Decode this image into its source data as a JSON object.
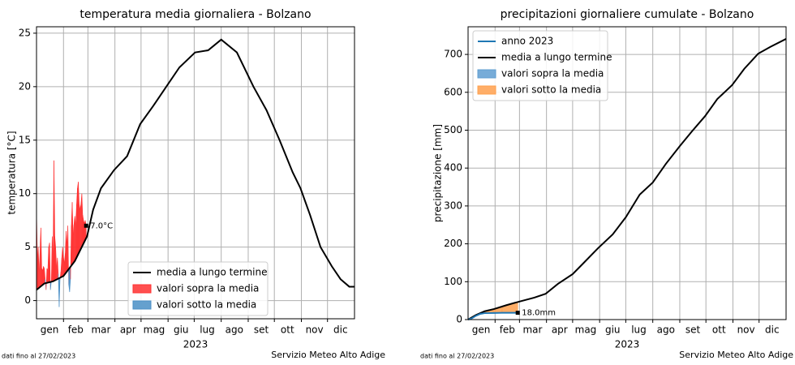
{
  "chart_data": [
    {
      "type": "line",
      "title": "temperatura media giornaliera - Bolzano",
      "ylabel": "temperatura [°C]",
      "xlabel": "2023",
      "xlim": [
        1,
        366
      ],
      "ylim": [
        -1.7,
        25.6
      ],
      "yticks": [
        0,
        5,
        10,
        15,
        20,
        25
      ],
      "xticks": [
        {
          "value": 16,
          "label": "gen"
        },
        {
          "value": 46,
          "label": "feb"
        },
        {
          "value": 75,
          "label": "mar"
        },
        {
          "value": 106,
          "label": "apr"
        },
        {
          "value": 136,
          "label": "mag"
        },
        {
          "value": 167,
          "label": "giu"
        },
        {
          "value": 197,
          "label": "lug"
        },
        {
          "value": 228,
          "label": "ago"
        },
        {
          "value": 259,
          "label": "set"
        },
        {
          "value": 289,
          "label": "ott"
        },
        {
          "value": 320,
          "label": "nov"
        },
        {
          "value": 350,
          "label": "dic"
        }
      ],
      "xgrid": [
        32,
        60,
        91,
        121,
        152,
        182,
        213,
        244,
        274,
        305,
        335
      ],
      "grid": true,
      "legend": "lower right",
      "series": [
        {
          "name": "media a lungo termine",
          "color": "#000000",
          "x": [
            1,
            10,
            20,
            32,
            45,
            59,
            66,
            75,
            90,
            105,
            120,
            135,
            150,
            165,
            183,
            198,
            213,
            231,
            250,
            265,
            280,
            295,
            304,
            315,
            327,
            340,
            350,
            360,
            366
          ],
          "values": [
            1.0,
            1.6,
            1.8,
            2.3,
            3.7,
            6.0,
            8.5,
            10.5,
            12.2,
            13.5,
            16.5,
            18.2,
            20.0,
            21.8,
            23.2,
            23.4,
            24.4,
            23.2,
            20.0,
            17.8,
            15.0,
            12.0,
            10.5,
            8.0,
            5.0,
            3.2,
            2.0,
            1.3,
            1.3
          ]
        },
        {
          "x": [
            1,
            2,
            3,
            4,
            5,
            6,
            7,
            8,
            9,
            10,
            11,
            12,
            13,
            14,
            15,
            16,
            17,
            18,
            19,
            20,
            21,
            22,
            23,
            24,
            25,
            26,
            27,
            28,
            29,
            30,
            31,
            32,
            33,
            34,
            35,
            36,
            37,
            38,
            39,
            40,
            41,
            42,
            43,
            44,
            45,
            46,
            47,
            48,
            49,
            50,
            51,
            52,
            53,
            54,
            55,
            56,
            57,
            58
          ],
          "values": [
            8.5,
            4,
            5,
            2.5,
            4.5,
            6.8,
            3,
            2.8,
            3.2,
            3,
            2,
            1.0,
            3,
            2.8,
            5,
            5.4,
            1.0,
            1.8,
            6,
            4,
            13.1,
            6,
            5,
            3,
            4,
            2.5,
            -0.6,
            2,
            2.7,
            4,
            5,
            4,
            3.5,
            4.4,
            6.5,
            5,
            7,
            1.5,
            0.8,
            2.0,
            7,
            9.2,
            6,
            7.1,
            7.9,
            7,
            9,
            10.5,
            11.1,
            9,
            8.5,
            9,
            10,
            8,
            7.5,
            7.2,
            7.5,
            7.0
          ]
        }
      ],
      "above": {
        "name": "valori sopra la media",
        "color": "#ff3030"
      },
      "below": {
        "name": "valori sotto la media",
        "color": "#4a8fc6"
      },
      "annotation": "7.0°C",
      "footer_left": "dati fino al 27/02/2023",
      "footer_right": "Servizio Meteo Alto Adige"
    },
    {
      "type": "line",
      "title": "precipitazioni giornaliere cumulate - Bolzano",
      "ylabel": "precipitazione [mm]",
      "xlabel": "2023",
      "xlim": [
        1,
        366
      ],
      "ylim": [
        0,
        773
      ],
      "yticks": [
        0,
        100,
        200,
        300,
        400,
        500,
        600,
        700
      ],
      "xticks": [
        {
          "value": 16,
          "label": "gen"
        },
        {
          "value": 46,
          "label": "feb"
        },
        {
          "value": 75,
          "label": "mar"
        },
        {
          "value": 106,
          "label": "apr"
        },
        {
          "value": 136,
          "label": "mag"
        },
        {
          "value": 167,
          "label": "giu"
        },
        {
          "value": 197,
          "label": "lug"
        },
        {
          "value": 228,
          "label": "ago"
        },
        {
          "value": 259,
          "label": "set"
        },
        {
          "value": 289,
          "label": "ott"
        },
        {
          "value": 320,
          "label": "nov"
        },
        {
          "value": 350,
          "label": "dic"
        }
      ],
      "xgrid": [
        32,
        60,
        91,
        121,
        152,
        182,
        213,
        244,
        274,
        305,
        335
      ],
      "grid": true,
      "legend": "upper left",
      "series": [
        {
          "name": "media a lungo termine",
          "color": "#000000",
          "x": [
            1,
            10,
            20,
            31,
            45,
            59,
            77,
            90,
            104,
            121,
            133,
            150,
            167,
            182,
            198,
            213,
            228,
            244,
            258,
            273,
            287,
            304,
            318,
            334,
            348,
            366
          ],
          "values": [
            0,
            12,
            22,
            28,
            38,
            47,
            58,
            68,
            94,
            120,
            148,
            188,
            225,
            270,
            330,
            362,
            411,
            458,
            497,
            537,
            582,
            619,
            662,
            702,
            720,
            741
          ]
        },
        {
          "name": "anno 2023",
          "color": "#1f77b4",
          "x": [
            1,
            5,
            10,
            15,
            20,
            30,
            40,
            58
          ],
          "values": [
            0,
            3,
            10,
            15,
            17,
            17.5,
            18,
            18.0
          ]
        }
      ],
      "above": {
        "name": "valori sopra la media",
        "color": "#5f9ed1"
      },
      "below": {
        "name": "valori sotto la media",
        "color": "#ffa04d"
      },
      "annotation": "18.0mm",
      "footer_left": "dati fino al 27/02/2023",
      "footer_right": "Servizio Meteo Alto Adige"
    }
  ]
}
